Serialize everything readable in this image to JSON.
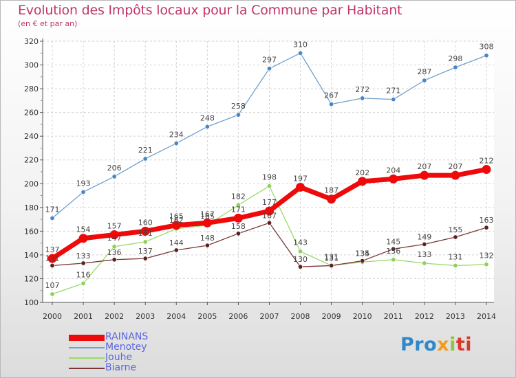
{
  "title": "Evolution des Impôts locaux pour la Commune par Habitant",
  "subtitle": "(en € et par an)",
  "brand": {
    "p1": "Pro",
    "p2": "x",
    "p3": "i",
    "p4": "ti"
  },
  "chart_data": {
    "type": "line",
    "x": [
      "2000",
      "2001",
      "2002",
      "2003",
      "2004",
      "2005",
      "2006",
      "2007",
      "2008",
      "2009",
      "2010",
      "2011",
      "2012",
      "2013",
      "2014"
    ],
    "yticks": [
      100,
      120,
      140,
      160,
      180,
      200,
      220,
      240,
      260,
      280,
      300,
      320
    ],
    "ylim": [
      100,
      320
    ],
    "series": [
      {
        "name": "Menotey",
        "color": "#6fa1cf",
        "point_color": "#4a86c2",
        "values": [
          171,
          193,
          206,
          221,
          234,
          248,
          258,
          297,
          310,
          267,
          272,
          271,
          287,
          298,
          308
        ],
        "labels": [
          "171",
          "193",
          "206",
          "221",
          "234",
          "248",
          "258",
          "297",
          "310",
          "267",
          "272",
          "271",
          "287",
          "298",
          "308"
        ]
      },
      {
        "name": "Jouhe",
        "color": "#9ad96a",
        "point_color": "#8fd05a",
        "values": [
          107,
          116,
          147,
          151,
          162,
          165,
          182,
          198,
          143,
          131,
          134,
          136,
          133,
          131,
          132
        ],
        "labels": [
          "107",
          "116",
          "147",
          "151",
          "162",
          "165",
          "182",
          "198",
          "143",
          "131",
          "134",
          "136",
          "133",
          "131",
          "132"
        ]
      },
      {
        "name": "Biarne",
        "color": "#7a3636",
        "point_color": "#5e2020",
        "values": [
          131,
          133,
          136,
          137,
          144,
          148,
          158,
          167,
          130,
          131,
          135,
          145,
          149,
          155,
          163
        ],
        "labels": [
          "131",
          "133",
          "136",
          "137",
          "144",
          "148",
          "158",
          "167",
          "130",
          "131",
          "135",
          "145",
          "149",
          "155",
          "163"
        ]
      },
      {
        "name": "RAINANS",
        "color": "#ee0a0a",
        "point_color": "#ee0a0a",
        "values": [
          137,
          154,
          157,
          160,
          165,
          167,
          171,
          177,
          197,
          187,
          202,
          204,
          207,
          207,
          212
        ],
        "labels": [
          "137",
          "154",
          "157",
          "160",
          "165",
          "167",
          "171",
          "177",
          "197",
          "187",
          "202",
          "204",
          "207",
          "207",
          "212"
        ]
      }
    ]
  },
  "legend": [
    {
      "name": "RAINANS",
      "color": "#ee0a0a"
    },
    {
      "name": "Menotey",
      "color": "#6fa1cf"
    },
    {
      "name": "Jouhe",
      "color": "#9ad96a"
    },
    {
      "name": "Biarne",
      "color": "#7a3636"
    }
  ]
}
